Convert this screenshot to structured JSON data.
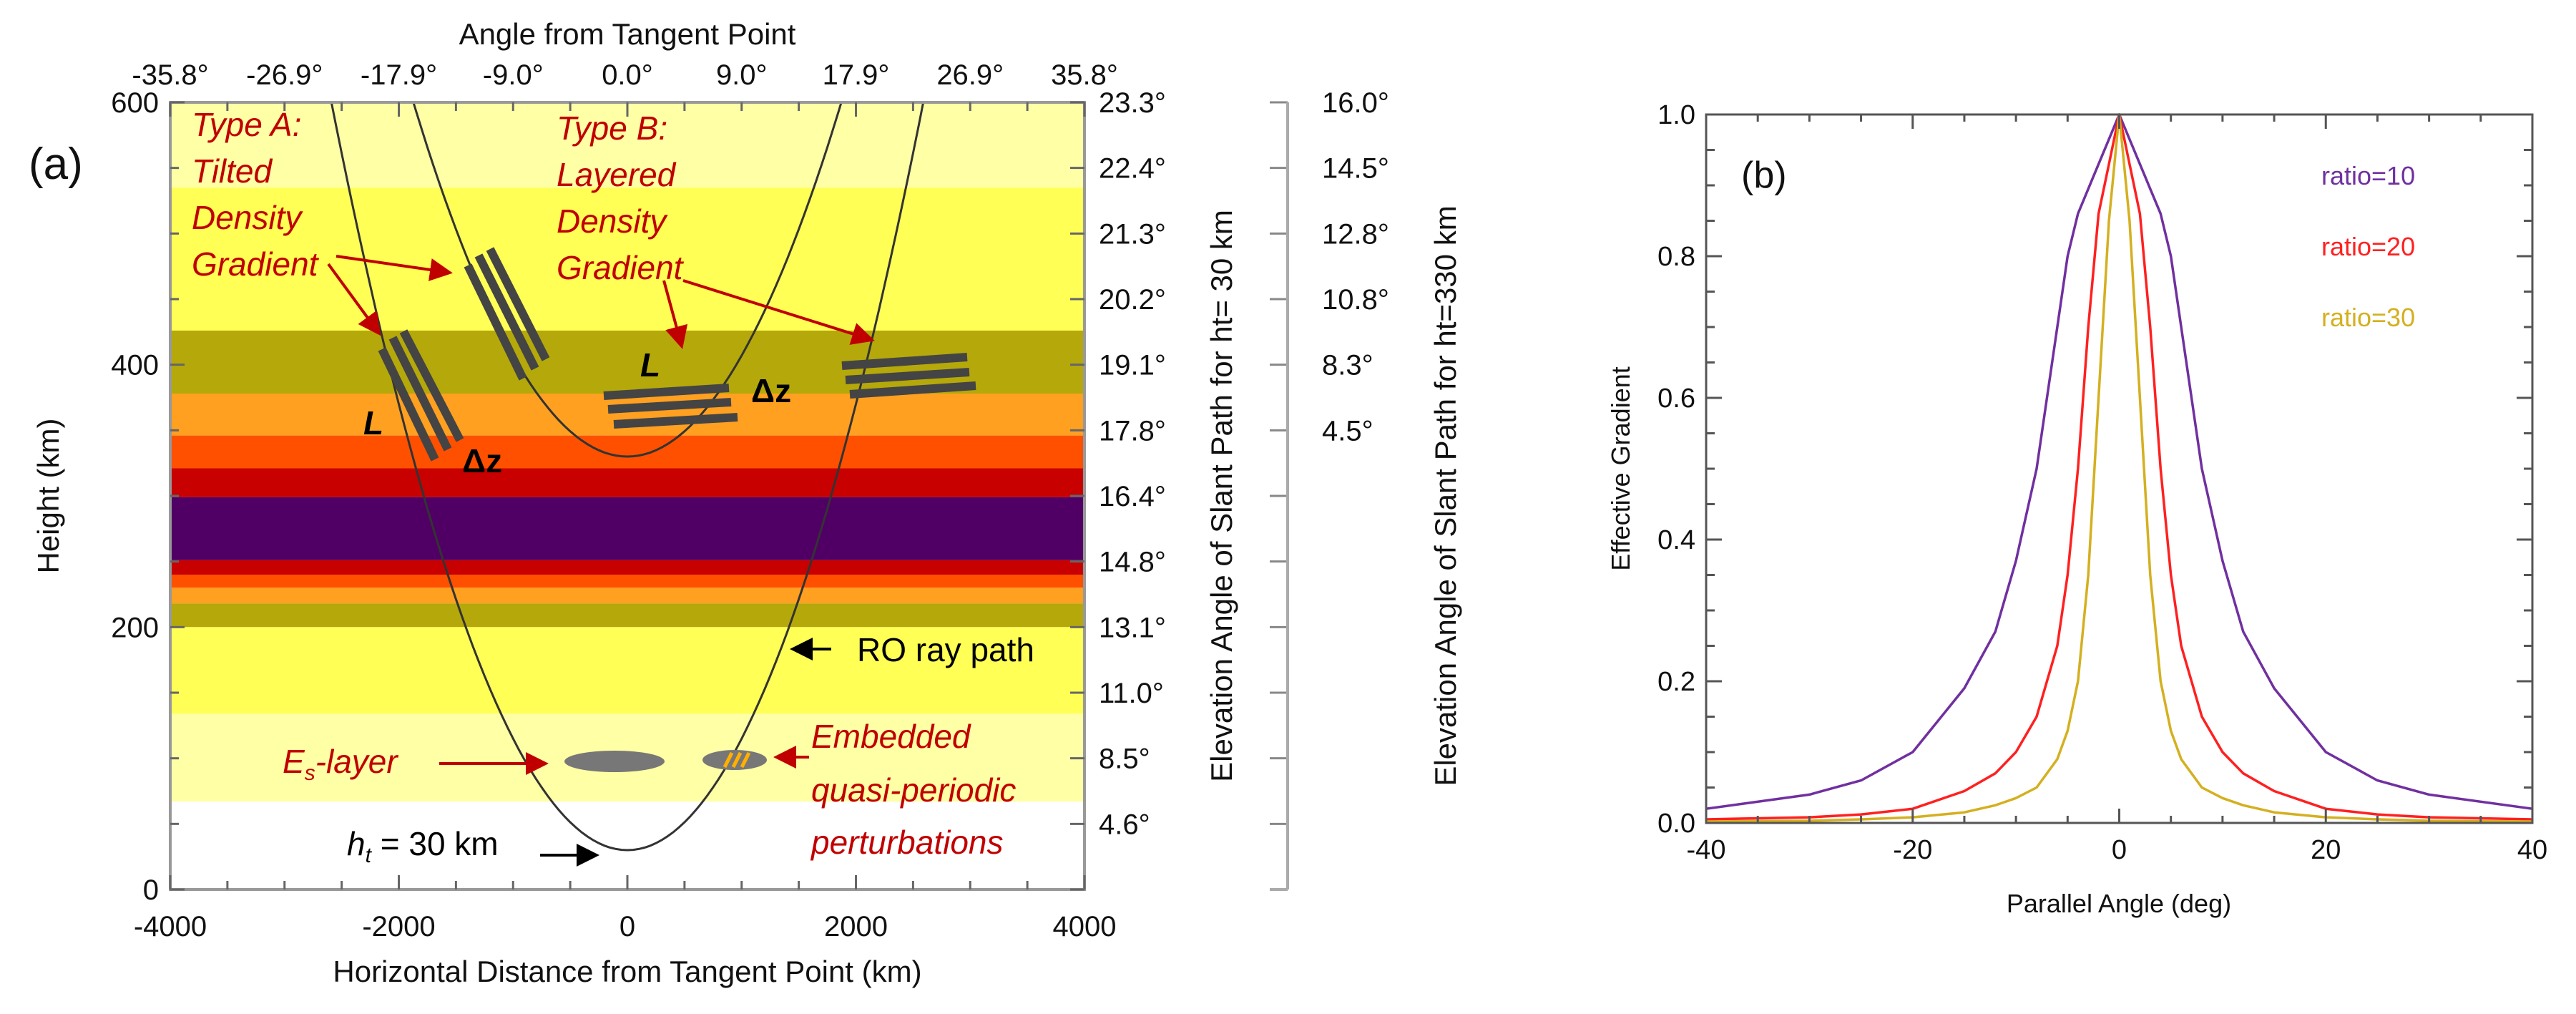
{
  "panel_a": {
    "label": "(a)",
    "top_axis_title": "Angle from Tangent Point",
    "top_ticks": [
      "-35.8°",
      "-26.9°",
      "-17.9°",
      "-9.0°",
      "0.0°",
      "9.0°",
      "17.9°",
      "26.9°",
      "35.8°"
    ],
    "x_title": "Horizontal Distance from Tangent Point (km)",
    "x_ticks": [
      "-4000",
      "-2000",
      "0",
      "2000",
      "4000"
    ],
    "x_range": [
      -4000,
      4000
    ],
    "y_title": "Height (km)",
    "y_ticks": [
      "0",
      "200",
      "400",
      "600"
    ],
    "y_range": [
      0,
      600
    ],
    "right1_title": "Elevation Angle of Slant Path for ht= 30 km",
    "right1_ticks": [
      "23.3°",
      "22.4°",
      "21.3°",
      "20.2°",
      "19.1°",
      "17.8°",
      "16.4°",
      "14.8°",
      "13.1°",
      "11.0°",
      "8.5°",
      "4.6°"
    ],
    "right2_title": "Elevation Angle of Slant Path for ht=330 km",
    "right2_ticks": [
      "16.0°",
      "14.5°",
      "12.8°",
      "10.8°",
      "8.3°",
      "4.5°"
    ],
    "bands": [
      {
        "from": 600,
        "to": 535,
        "color": "#FFFFA6"
      },
      {
        "from": 535,
        "to": 426,
        "color": "#FFFF55"
      },
      {
        "from": 426,
        "to": 378,
        "color": "#B5A80A"
      },
      {
        "from": 378,
        "to": 346,
        "color": "#FFA020"
      },
      {
        "from": 346,
        "to": 321,
        "color": "#FF5000"
      },
      {
        "from": 321,
        "to": 299,
        "color": "#C80000"
      },
      {
        "from": 299,
        "to": 251,
        "color": "#500064"
      },
      {
        "from": 251,
        "to": 240,
        "color": "#C80000"
      },
      {
        "from": 240,
        "to": 230,
        "color": "#FF5000"
      },
      {
        "from": 230,
        "to": 218,
        "color": "#FFA020"
      },
      {
        "from": 218,
        "to": 200,
        "color": "#B5A80A"
      },
      {
        "from": 200,
        "to": 134,
        "color": "#FFFF55"
      },
      {
        "from": 134,
        "to": 67,
        "color": "#FFFFA6"
      }
    ],
    "ray_paths": [
      {
        "tangent_height_km": 30
      },
      {
        "tangent_height_km": 330
      }
    ],
    "annotations": {
      "type_a": [
        "Type A:",
        "Tilted",
        "Density",
        "Gradient"
      ],
      "type_b": [
        "Type B:",
        "Layered",
        "Density",
        "Gradient"
      ],
      "length_symbol": "L",
      "dz_symbol": "Δz",
      "ray_label": "RO ray path",
      "es_main": "E",
      "es_sub": "s",
      "es_rest": "-layer",
      "embedded": [
        "Embedded",
        "quasi-periodic",
        "perturbations"
      ],
      "ht_main": "h",
      "ht_sub": "t",
      "ht_rest": " = 30 km"
    },
    "colors": {
      "annotation": "#C00000",
      "bars": "#444444",
      "blob": "#777777",
      "stripe": "#FFB000"
    }
  },
  "chart_data": {
    "type": "line",
    "panel_label": "(b)",
    "title": "",
    "xlabel": "Parallel Angle (deg)",
    "ylabel": "Effective Gradient",
    "xlim": [
      -40,
      40
    ],
    "ylim": [
      0,
      1.0
    ],
    "x_ticks": [
      "-40",
      "-20",
      "0",
      "20",
      "40"
    ],
    "y_ticks": [
      "0.0",
      "0.2",
      "0.4",
      "0.6",
      "0.8",
      "1.0"
    ],
    "grid": false,
    "legend_position": "top-right",
    "x": [
      -40,
      -30,
      -25,
      -20,
      -15,
      -12,
      -10,
      -8,
      -6,
      -5,
      -4,
      -3,
      -2,
      -1,
      0,
      1,
      2,
      3,
      4,
      5,
      6,
      8,
      10,
      12,
      15,
      20,
      25,
      30,
      40
    ],
    "series": [
      {
        "name": "ratio=10",
        "color": "#7030A0",
        "values": [
          0.02,
          0.04,
          0.06,
          0.1,
          0.19,
          0.27,
          0.37,
          0.5,
          0.7,
          0.8,
          0.86,
          0.895,
          0.93,
          0.965,
          1.0,
          0.965,
          0.93,
          0.895,
          0.86,
          0.8,
          0.7,
          0.5,
          0.37,
          0.27,
          0.19,
          0.1,
          0.06,
          0.04,
          0.02
        ]
      },
      {
        "name": "ratio=20",
        "color": "#FF2020",
        "values": [
          0.005,
          0.008,
          0.012,
          0.02,
          0.045,
          0.07,
          0.1,
          0.15,
          0.25,
          0.35,
          0.5,
          0.7,
          0.86,
          0.93,
          1.0,
          0.93,
          0.86,
          0.7,
          0.5,
          0.35,
          0.25,
          0.15,
          0.1,
          0.07,
          0.045,
          0.02,
          0.012,
          0.008,
          0.005
        ]
      },
      {
        "name": "ratio=30",
        "color": "#D4B020",
        "values": [
          0.002,
          0.003,
          0.005,
          0.008,
          0.015,
          0.025,
          0.035,
          0.05,
          0.09,
          0.13,
          0.2,
          0.35,
          0.6,
          0.85,
          1.0,
          0.85,
          0.6,
          0.35,
          0.2,
          0.13,
          0.09,
          0.05,
          0.035,
          0.025,
          0.015,
          0.008,
          0.005,
          0.003,
          0.002
        ]
      }
    ]
  }
}
